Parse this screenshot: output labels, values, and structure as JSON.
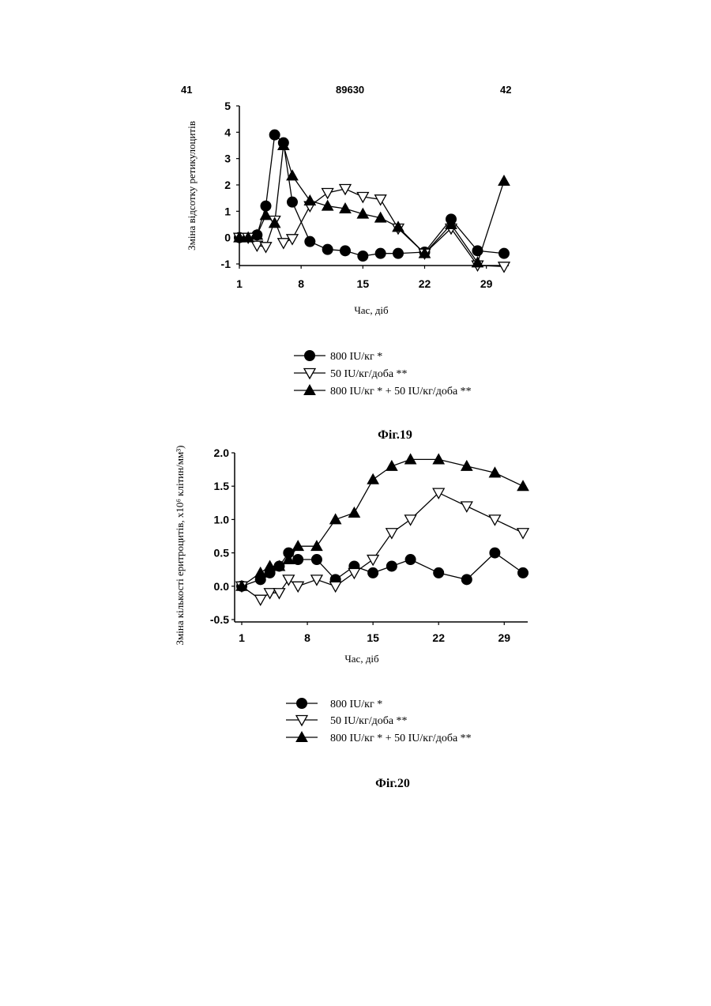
{
  "header": {
    "left": "41",
    "center": "89630",
    "right": "42"
  },
  "chart_data": [
    {
      "type": "line",
      "caption": "Фіг.19",
      "xlabel": "Час, діб",
      "ylabel": "Зміна відсотку ретикулоцитів",
      "xlim": [
        1,
        31
      ],
      "ylim": [
        -1,
        5
      ],
      "xticks": [
        "1",
        "8",
        "15",
        "22",
        "29"
      ],
      "xtick_values": [
        1,
        8,
        15,
        22,
        29
      ],
      "yticks": [
        "-1",
        "0",
        "1",
        "2",
        "3",
        "4",
        "5"
      ],
      "ytick_values": [
        -1,
        0,
        1,
        2,
        3,
        4,
        5
      ],
      "series": [
        {
          "name": "800 IU/кг *",
          "marker": "circle",
          "x": [
            1,
            3,
            4,
            5,
            6,
            7,
            9,
            11,
            13,
            15,
            17,
            19,
            22,
            25,
            28,
            31
          ],
          "y": [
            0,
            0.1,
            1.2,
            3.9,
            3.6,
            1.35,
            -0.15,
            -0.45,
            -0.5,
            -0.7,
            -0.6,
            -0.6,
            -0.55,
            0.7,
            -0.5,
            -0.6
          ]
        },
        {
          "name": "50 IU/кг/доба **",
          "marker": "triangle-down-open",
          "x": [
            1,
            2,
            3,
            4,
            5,
            6,
            7,
            9,
            11,
            13,
            15,
            17,
            19,
            22,
            25,
            28,
            31
          ],
          "y": [
            0,
            0,
            -0.3,
            -0.35,
            0.65,
            -0.2,
            -0.05,
            1.2,
            1.7,
            1.85,
            1.55,
            1.45,
            0.35,
            -0.6,
            0.35,
            -1.05,
            -1.1
          ]
        },
        {
          "name": "800 IU/кг * + 50 IU/кг/доба **",
          "marker": "triangle-up",
          "x": [
            1,
            2,
            3,
            4,
            5,
            6,
            7,
            9,
            11,
            13,
            15,
            17,
            19,
            22,
            25,
            28,
            31
          ],
          "y": [
            0,
            0,
            0.1,
            0.85,
            0.55,
            3.5,
            2.35,
            1.4,
            1.2,
            1.1,
            0.9,
            0.75,
            0.4,
            -0.6,
            0.5,
            -0.95,
            2.15
          ]
        }
      ]
    },
    {
      "type": "line",
      "caption": "Фіг.20",
      "xlabel": "Час, діб",
      "ylabel": "Зміна кількості еритроцитів, x10⁶ клітин/мм³)",
      "xlim": [
        1,
        31
      ],
      "ylim": [
        -0.5,
        2.0
      ],
      "xticks": [
        "1",
        "8",
        "15",
        "22",
        "29"
      ],
      "xtick_values": [
        1,
        8,
        15,
        22,
        29
      ],
      "yticks": [
        "-0.5",
        "0.0",
        "0.5",
        "1.0",
        "1.5",
        "2.0"
      ],
      "ytick_values": [
        -0.5,
        0,
        0.5,
        1.0,
        1.5,
        2.0
      ],
      "series": [
        {
          "name": "800 IU/кг *",
          "marker": "circle",
          "x": [
            1,
            3,
            4,
            5,
            6,
            7,
            9,
            11,
            13,
            15,
            17,
            19,
            22,
            25,
            28,
            31
          ],
          "y": [
            0,
            0.1,
            0.2,
            0.3,
            0.5,
            0.4,
            0.4,
            0.1,
            0.3,
            0.2,
            0.3,
            0.4,
            0.2,
            0.1,
            0.5,
            0.2
          ]
        },
        {
          "name": "50 IU/кг/доба **",
          "marker": "triangle-down-open",
          "x": [
            1,
            3,
            4,
            5,
            6,
            7,
            9,
            11,
            13,
            15,
            17,
            19,
            22,
            25,
            28,
            31
          ],
          "y": [
            0,
            -0.2,
            -0.1,
            -0.1,
            0.1,
            0,
            0.1,
            0,
            0.2,
            0.4,
            0.8,
            1.0,
            1.4,
            1.2,
            1.0,
            0.8
          ]
        },
        {
          "name": "800 IU/кг * + 50 IU/кг/доба **",
          "marker": "triangle-up",
          "x": [
            1,
            3,
            4,
            5,
            6,
            7,
            9,
            11,
            13,
            15,
            17,
            19,
            22,
            25,
            28,
            31
          ],
          "y": [
            0,
            0.2,
            0.3,
            0.3,
            0.4,
            0.6,
            0.6,
            1.0,
            1.1,
            1.6,
            1.8,
            1.9,
            1.9,
            1.8,
            1.7,
            1.5
          ]
        }
      ]
    }
  ]
}
